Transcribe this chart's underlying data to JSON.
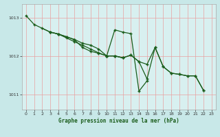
{
  "title": "Graphe pression niveau de la mer (hPa)",
  "background_color": "#c8e8e8",
  "plot_bg_color": "#d8f0f0",
  "grid_color": "#e8a0a0",
  "line_color": "#1a5c1a",
  "xlim": [
    -0.5,
    23.5
  ],
  "ylim": [
    1010.6,
    1013.35
  ],
  "yticks": [
    1011,
    1012,
    1013
  ],
  "xticks": [
    0,
    1,
    2,
    3,
    4,
    5,
    6,
    7,
    8,
    9,
    10,
    11,
    12,
    13,
    14,
    15,
    16,
    17,
    18,
    19,
    20,
    21,
    22,
    23
  ],
  "s1_x": [
    0,
    1,
    3,
    4,
    5,
    6,
    7,
    8,
    9,
    10,
    11,
    12
  ],
  "s1_y": [
    1013.05,
    1012.82,
    1012.62,
    1012.57,
    1012.47,
    1012.37,
    1012.28,
    1012.18,
    1012.08,
    1012.0,
    1012.0,
    1011.95
  ],
  "s2_x": [
    2,
    3,
    4,
    5,
    6,
    7,
    8,
    9,
    10,
    11,
    12,
    13,
    14,
    15
  ],
  "s2_y": [
    1012.72,
    1012.62,
    1012.57,
    1012.5,
    1012.42,
    1012.22,
    1012.12,
    1012.07,
    1012.0,
    1012.68,
    1012.62,
    1012.58,
    1011.08,
    1011.35
  ],
  "s3_x": [
    3,
    4,
    5,
    6,
    7,
    8,
    9,
    10,
    11,
    12,
    13,
    14,
    15,
    16,
    17,
    18,
    19,
    20,
    21,
    22
  ],
  "s3_y": [
    1012.62,
    1012.57,
    1012.5,
    1012.43,
    1012.33,
    1012.28,
    1012.18,
    1012.0,
    1012.0,
    1011.95,
    1012.02,
    1011.85,
    1011.4,
    1012.22,
    1011.72,
    1011.55,
    1011.52,
    1011.48,
    1011.48,
    1011.1
  ],
  "s4_x": [
    10,
    11,
    12,
    13,
    14,
    15,
    16,
    17,
    18,
    19,
    20,
    21,
    22
  ],
  "s4_y": [
    1012.0,
    1012.0,
    1011.95,
    1012.02,
    1011.85,
    1011.78,
    1012.22,
    1011.72,
    1011.55,
    1011.52,
    1011.48,
    1011.48,
    1011.1
  ]
}
